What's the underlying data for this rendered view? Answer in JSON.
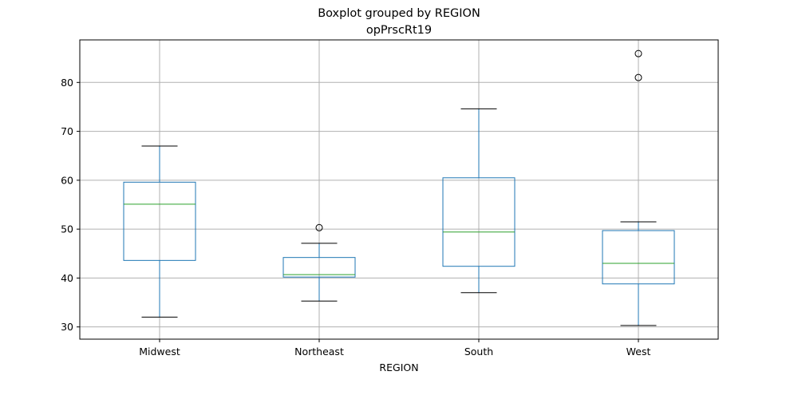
{
  "chart_data": {
    "type": "boxplot",
    "title": "Boxplot grouped by REGION",
    "subtitle": "opPrscRt19",
    "xlabel": "REGION",
    "ylabel": "",
    "ylim": [
      27.5,
      88.7
    ],
    "yticks": [
      30,
      40,
      50,
      60,
      70,
      80
    ],
    "grid": true,
    "colors": {
      "box": "#1f77b4",
      "median": "#2ca02c",
      "whisker": "#1f77b4",
      "cap": "#000000",
      "flier": "#000000",
      "grid": "#b0b0b0"
    },
    "categories": [
      "Midwest",
      "Northeast",
      "South",
      "West"
    ],
    "boxes": [
      {
        "category": "Midwest",
        "whislo": 32.0,
        "q1": 43.6,
        "med": 55.1,
        "q3": 59.6,
        "whishi": 67.0,
        "fliers": []
      },
      {
        "category": "Northeast",
        "whislo": 35.3,
        "q1": 40.2,
        "med": 40.7,
        "q3": 44.2,
        "whishi": 47.1,
        "fliers": [
          50.3
        ]
      },
      {
        "category": "South",
        "whislo": 37.0,
        "q1": 42.4,
        "med": 49.4,
        "q3": 60.5,
        "whishi": 74.6,
        "fliers": []
      },
      {
        "category": "West",
        "whislo": 30.3,
        "q1": 38.8,
        "med": 43.0,
        "q3": 49.7,
        "whishi": 51.5,
        "fliers": [
          81.0,
          85.9
        ]
      }
    ]
  }
}
